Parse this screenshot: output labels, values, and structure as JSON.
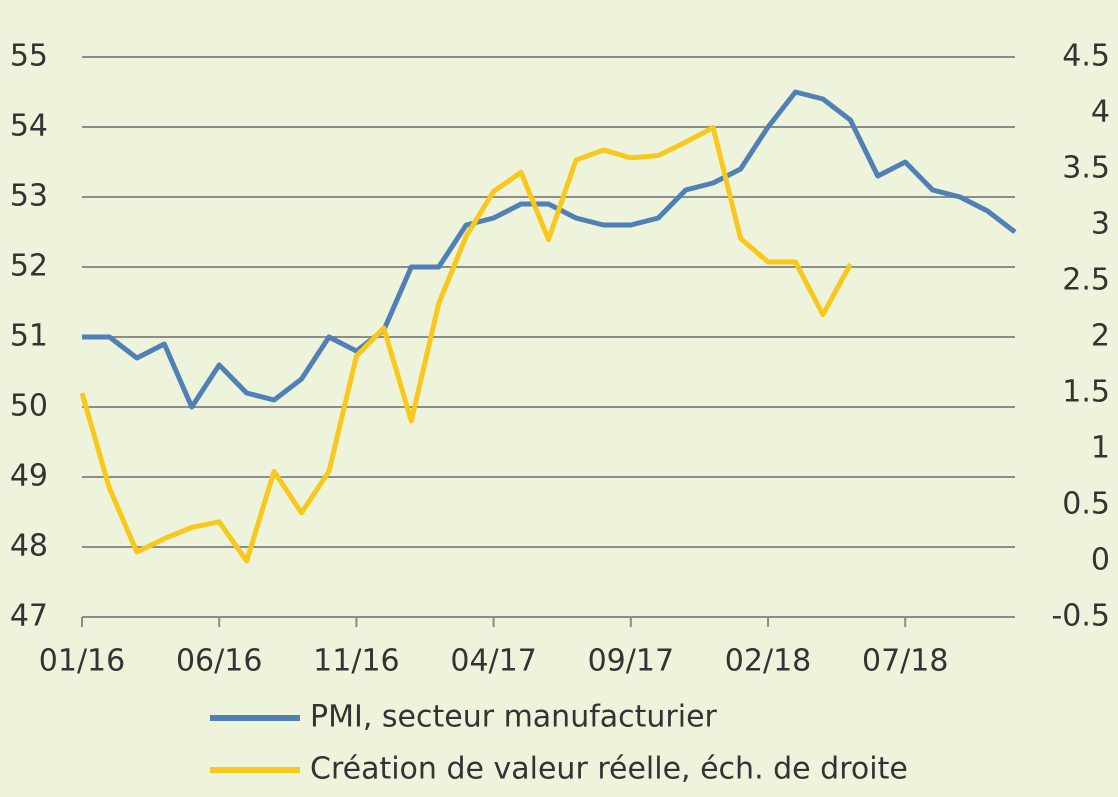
{
  "chart_data": {
    "type": "line",
    "categories": [
      "01/16",
      null,
      null,
      null,
      null,
      "06/16",
      null,
      null,
      null,
      null,
      "11/16",
      null,
      null,
      null,
      null,
      "04/17",
      null,
      null,
      null,
      null,
      "09/17",
      null,
      null,
      null,
      null,
      "02/18",
      null,
      null,
      null,
      null,
      "07/18",
      null,
      null,
      null,
      null
    ],
    "series": [
      {
        "name": "PMI, secteur manufacturier",
        "color": "#4f81b6",
        "values": [
          51.0,
          51.0,
          50.7,
          50.9,
          50.0,
          50.6,
          50.2,
          50.1,
          50.4,
          51.0,
          50.8,
          51.1,
          52.0,
          52.0,
          52.6,
          52.7,
          52.9,
          52.9,
          52.7,
          52.6,
          52.6,
          52.7,
          53.1,
          53.2,
          53.4,
          54.0,
          54.5,
          54.4,
          54.1,
          53.3,
          53.5,
          53.1,
          53.0,
          52.8,
          52.5
        ]
      },
      {
        "name": "Création de valeur réelle, éch. de droite",
        "color": "#f9c81c",
        "axis": "y2",
        "values": [
          1.5,
          0.65,
          0.08,
          0.2,
          0.3,
          0.35,
          0.0,
          0.8,
          0.43,
          0.8,
          1.83,
          2.08,
          1.25,
          2.3,
          2.9,
          3.3,
          3.47,
          2.87,
          3.58,
          3.67,
          3.6,
          3.62,
          3.74,
          3.87,
          2.88,
          2.67,
          2.67,
          2.2,
          2.65,
          null,
          null,
          null,
          null,
          null,
          null
        ]
      }
    ],
    "ylim": [
      47,
      55
    ],
    "yticks": [
      47,
      48,
      49,
      50,
      51,
      52,
      53,
      54,
      55
    ],
    "y2lim": [
      -0.5,
      4.5
    ],
    "y2ticks": [
      -0.5,
      0,
      0.5,
      1,
      1.5,
      2,
      2.5,
      3,
      3.5,
      4,
      4.5
    ],
    "grid": true
  }
}
